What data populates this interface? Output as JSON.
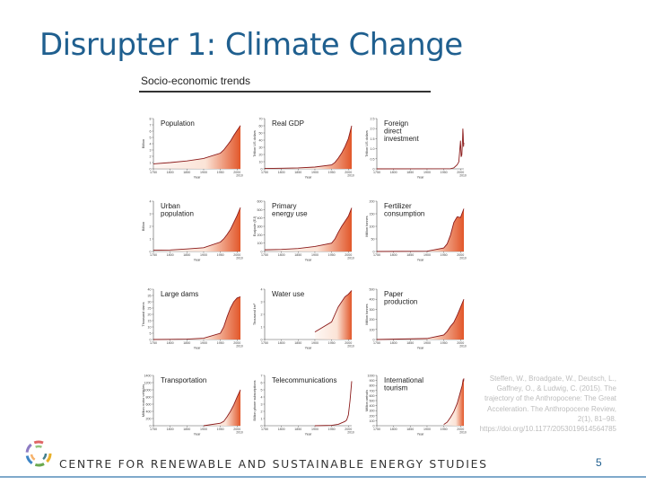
{
  "slide": {
    "title": "Disrupter 1: Climate Change",
    "figure_heading": "Socio-economic trends",
    "citation": "Steffen, W., Broadgate, W., Deutsch, L., Gaffney, O., & Ludwig, C. (2015). The trajectory of the Anthropocene: The Great Acceleration. The Anthropocene Review, 2(1), 81–98. https://doi.org/10.1177/2053019614564785",
    "footer": "CENTRE FOR RENEWABLE AND SUSTAINABLE ENERGY STUDIES",
    "page_number": "5"
  },
  "colors": {
    "title": "#1f5f8f",
    "line": "#8b1a1a",
    "fill_dark": "#e2572a",
    "fill_light": "#fbe3d6"
  },
  "chart_data": [
    {
      "type": "area",
      "title": "Population",
      "xlabel": "Year",
      "ylabel": "Billion",
      "xticks": [
        "1750",
        "1800",
        "1850",
        "1900",
        "1950",
        "2000"
      ],
      "xtick_extra": "2010",
      "yticks": [
        "0",
        "1",
        "2",
        "3",
        "4",
        "5",
        "6",
        "7",
        "8"
      ],
      "ylim": [
        0,
        8
      ],
      "x": [
        1750,
        1800,
        1850,
        1900,
        1950,
        1960,
        1970,
        1980,
        1990,
        2000,
        2010
      ],
      "values": [
        0.8,
        1.0,
        1.26,
        1.65,
        2.5,
        3.0,
        3.7,
        4.4,
        5.3,
        6.1,
        6.9
      ]
    },
    {
      "type": "area",
      "title": "Real GDP",
      "xlabel": "Year",
      "ylabel": "Trillion US dollars",
      "xticks": [
        "1750",
        "1800",
        "1850",
        "1900",
        "1950",
        "2000"
      ],
      "xtick_extra": "2010",
      "yticks": [
        "0",
        "10",
        "20",
        "30",
        "40",
        "50",
        "60",
        "70"
      ],
      "ylim": [
        0,
        70
      ],
      "x": [
        1750,
        1800,
        1850,
        1900,
        1950,
        1960,
        1970,
        1980,
        1990,
        2000,
        2010
      ],
      "values": [
        0.5,
        0.8,
        1.3,
        2.5,
        5.5,
        9,
        15,
        22,
        31,
        42,
        60
      ]
    },
    {
      "type": "line",
      "title": "Foreign direct investment",
      "xlabel": "Year",
      "ylabel": "Trillion US dollars",
      "xticks": [
        "1750",
        "1800",
        "1850",
        "1900",
        "1950",
        "2000"
      ],
      "xtick_extra": "2010",
      "yticks": [
        "0",
        "0.5",
        "1.0",
        "1.5",
        "2.0",
        "2.5"
      ],
      "ylim": [
        0,
        2.5
      ],
      "x": [
        1750,
        1970,
        1980,
        1990,
        1995,
        2000,
        2002,
        2004,
        2006,
        2007,
        2008,
        2009,
        2010
      ],
      "values": [
        0,
        0.01,
        0.05,
        0.2,
        0.35,
        1.4,
        0.6,
        0.7,
        1.4,
        2.0,
        1.7,
        1.1,
        1.3
      ]
    },
    {
      "type": "area",
      "title": "Urban population",
      "xlabel": "Year",
      "ylabel": "Billion",
      "xticks": [
        "1750",
        "1800",
        "1850",
        "1900",
        "1950",
        "2000"
      ],
      "xtick_extra": "2010",
      "yticks": [
        "0",
        "1",
        "2",
        "3",
        "4"
      ],
      "ylim": [
        0,
        4
      ],
      "x": [
        1750,
        1800,
        1850,
        1900,
        1950,
        1960,
        1970,
        1980,
        1990,
        2000,
        2010
      ],
      "values": [
        0.1,
        0.12,
        0.2,
        0.3,
        0.75,
        1.0,
        1.35,
        1.75,
        2.3,
        2.85,
        3.5
      ]
    },
    {
      "type": "area",
      "title": "Primary energy use",
      "xlabel": "Year",
      "ylabel": "Exajoule (EJ)",
      "xticks": [
        "1750",
        "1800",
        "1850",
        "1900",
        "1950",
        "2000"
      ],
      "xtick_extra": "2010",
      "yticks": [
        "0",
        "100",
        "200",
        "300",
        "400",
        "500",
        "600"
      ],
      "ylim": [
        0,
        600
      ],
      "x": [
        1750,
        1800,
        1850,
        1900,
        1950,
        1960,
        1970,
        1980,
        1990,
        2000,
        2010
      ],
      "values": [
        20,
        25,
        35,
        60,
        100,
        150,
        230,
        300,
        360,
        420,
        520
      ]
    },
    {
      "type": "area",
      "title": "Fertilizer consumption",
      "xlabel": "Year",
      "ylabel": "Million tonnes",
      "xticks": [
        "1750",
        "1800",
        "1850",
        "1900",
        "1950",
        "2000"
      ],
      "xtick_extra": "2010",
      "yticks": [
        "0",
        "50",
        "100",
        "150",
        "200"
      ],
      "ylim": [
        0,
        200
      ],
      "x": [
        1750,
        1900,
        1950,
        1960,
        1970,
        1980,
        1990,
        2000,
        2010
      ],
      "values": [
        0,
        1,
        14,
        30,
        65,
        115,
        138,
        135,
        170
      ]
    },
    {
      "type": "area",
      "title": "Large dams",
      "xlabel": "Year",
      "ylabel": "Thousand dams",
      "xticks": [
        "1750",
        "1800",
        "1850",
        "1900",
        "1950",
        "2000"
      ],
      "xtick_extra": "2010",
      "yticks": [
        "0",
        "5",
        "10",
        "15",
        "20",
        "25",
        "30",
        "35",
        "40"
      ],
      "ylim": [
        0,
        40
      ],
      "x": [
        1750,
        1800,
        1850,
        1900,
        1950,
        1960,
        1970,
        1980,
        1990,
        2000,
        2010
      ],
      "values": [
        0,
        0.1,
        0.3,
        1,
        5,
        10,
        18,
        25,
        30,
        33,
        34
      ]
    },
    {
      "type": "area",
      "title": "Water use",
      "xlabel": "Year",
      "ylabel": "Thousand km³",
      "xticks": [
        "1750",
        "1800",
        "1850",
        "1900",
        "1950",
        "2000"
      ],
      "xtick_extra": "2010",
      "yticks": [
        "0",
        "1",
        "2",
        "3",
        "4"
      ],
      "ylim": [
        0,
        4
      ],
      "x": [
        1900,
        1950,
        1960,
        1970,
        1980,
        1990,
        2000,
        2010
      ],
      "values": [
        0.6,
        1.4,
        2.0,
        2.6,
        3.0,
        3.4,
        3.6,
        3.9
      ]
    },
    {
      "type": "area",
      "title": "Paper production",
      "xlabel": "Year",
      "ylabel": "Million tonnes",
      "xticks": [
        "1750",
        "1800",
        "1850",
        "1900",
        "1950",
        "2000"
      ],
      "xtick_extra": "2010",
      "yticks": [
        "0",
        "100",
        "200",
        "300",
        "400",
        "500"
      ],
      "ylim": [
        0,
        500
      ],
      "x": [
        1750,
        1900,
        1950,
        1960,
        1970,
        1980,
        1990,
        2000,
        2010
      ],
      "values": [
        0,
        10,
        45,
        80,
        130,
        170,
        240,
        320,
        400
      ]
    },
    {
      "type": "area",
      "title": "Transportation",
      "xlabel": "Year",
      "ylabel": "Million motor vehicles",
      "xticks": [
        "1750",
        "1800",
        "1850",
        "1900",
        "1950",
        "2000"
      ],
      "xtick_extra": "2010",
      "yticks": [
        "0",
        "200",
        "400",
        "600",
        "800",
        "1000",
        "1200",
        "1400"
      ],
      "ylim": [
        0,
        1400
      ],
      "x": [
        1900,
        1950,
        1960,
        1970,
        1980,
        1990,
        2000,
        2010
      ],
      "values": [
        0,
        70,
        120,
        250,
        400,
        580,
        800,
        1000
      ]
    },
    {
      "type": "line",
      "title": "Telecommunications",
      "xlabel": "Year",
      "ylabel": "Billion phone subscriptions",
      "xticks": [
        "1750",
        "1800",
        "1850",
        "1900",
        "1950",
        "2000"
      ],
      "xtick_extra": "2010",
      "yticks": [
        "0",
        "1",
        "2",
        "3",
        "4",
        "5",
        "6",
        "7"
      ],
      "ylim": [
        0,
        7
      ],
      "x": [
        1900,
        1950,
        1970,
        1980,
        1990,
        1995,
        2000,
        2005,
        2010
      ],
      "values": [
        0,
        0.05,
        0.2,
        0.4,
        0.6,
        0.8,
        1.5,
        3.5,
        6.2
      ]
    },
    {
      "type": "area",
      "title": "International tourism",
      "xlabel": "Year",
      "ylabel": "Million arrivals",
      "xticks": [
        "1750",
        "1800",
        "1850",
        "1900",
        "1950",
        "2000"
      ],
      "xtick_extra": "2010",
      "yticks": [
        "0",
        "100",
        "200",
        "300",
        "400",
        "500",
        "600",
        "700",
        "800",
        "900",
        "1000"
      ],
      "ylim": [
        0,
        1000
      ],
      "x": [
        1950,
        1960,
        1970,
        1980,
        1990,
        2000,
        2005,
        2008,
        2009,
        2010
      ],
      "values": [
        25,
        70,
        165,
        280,
        440,
        680,
        800,
        920,
        880,
        940
      ]
    }
  ]
}
